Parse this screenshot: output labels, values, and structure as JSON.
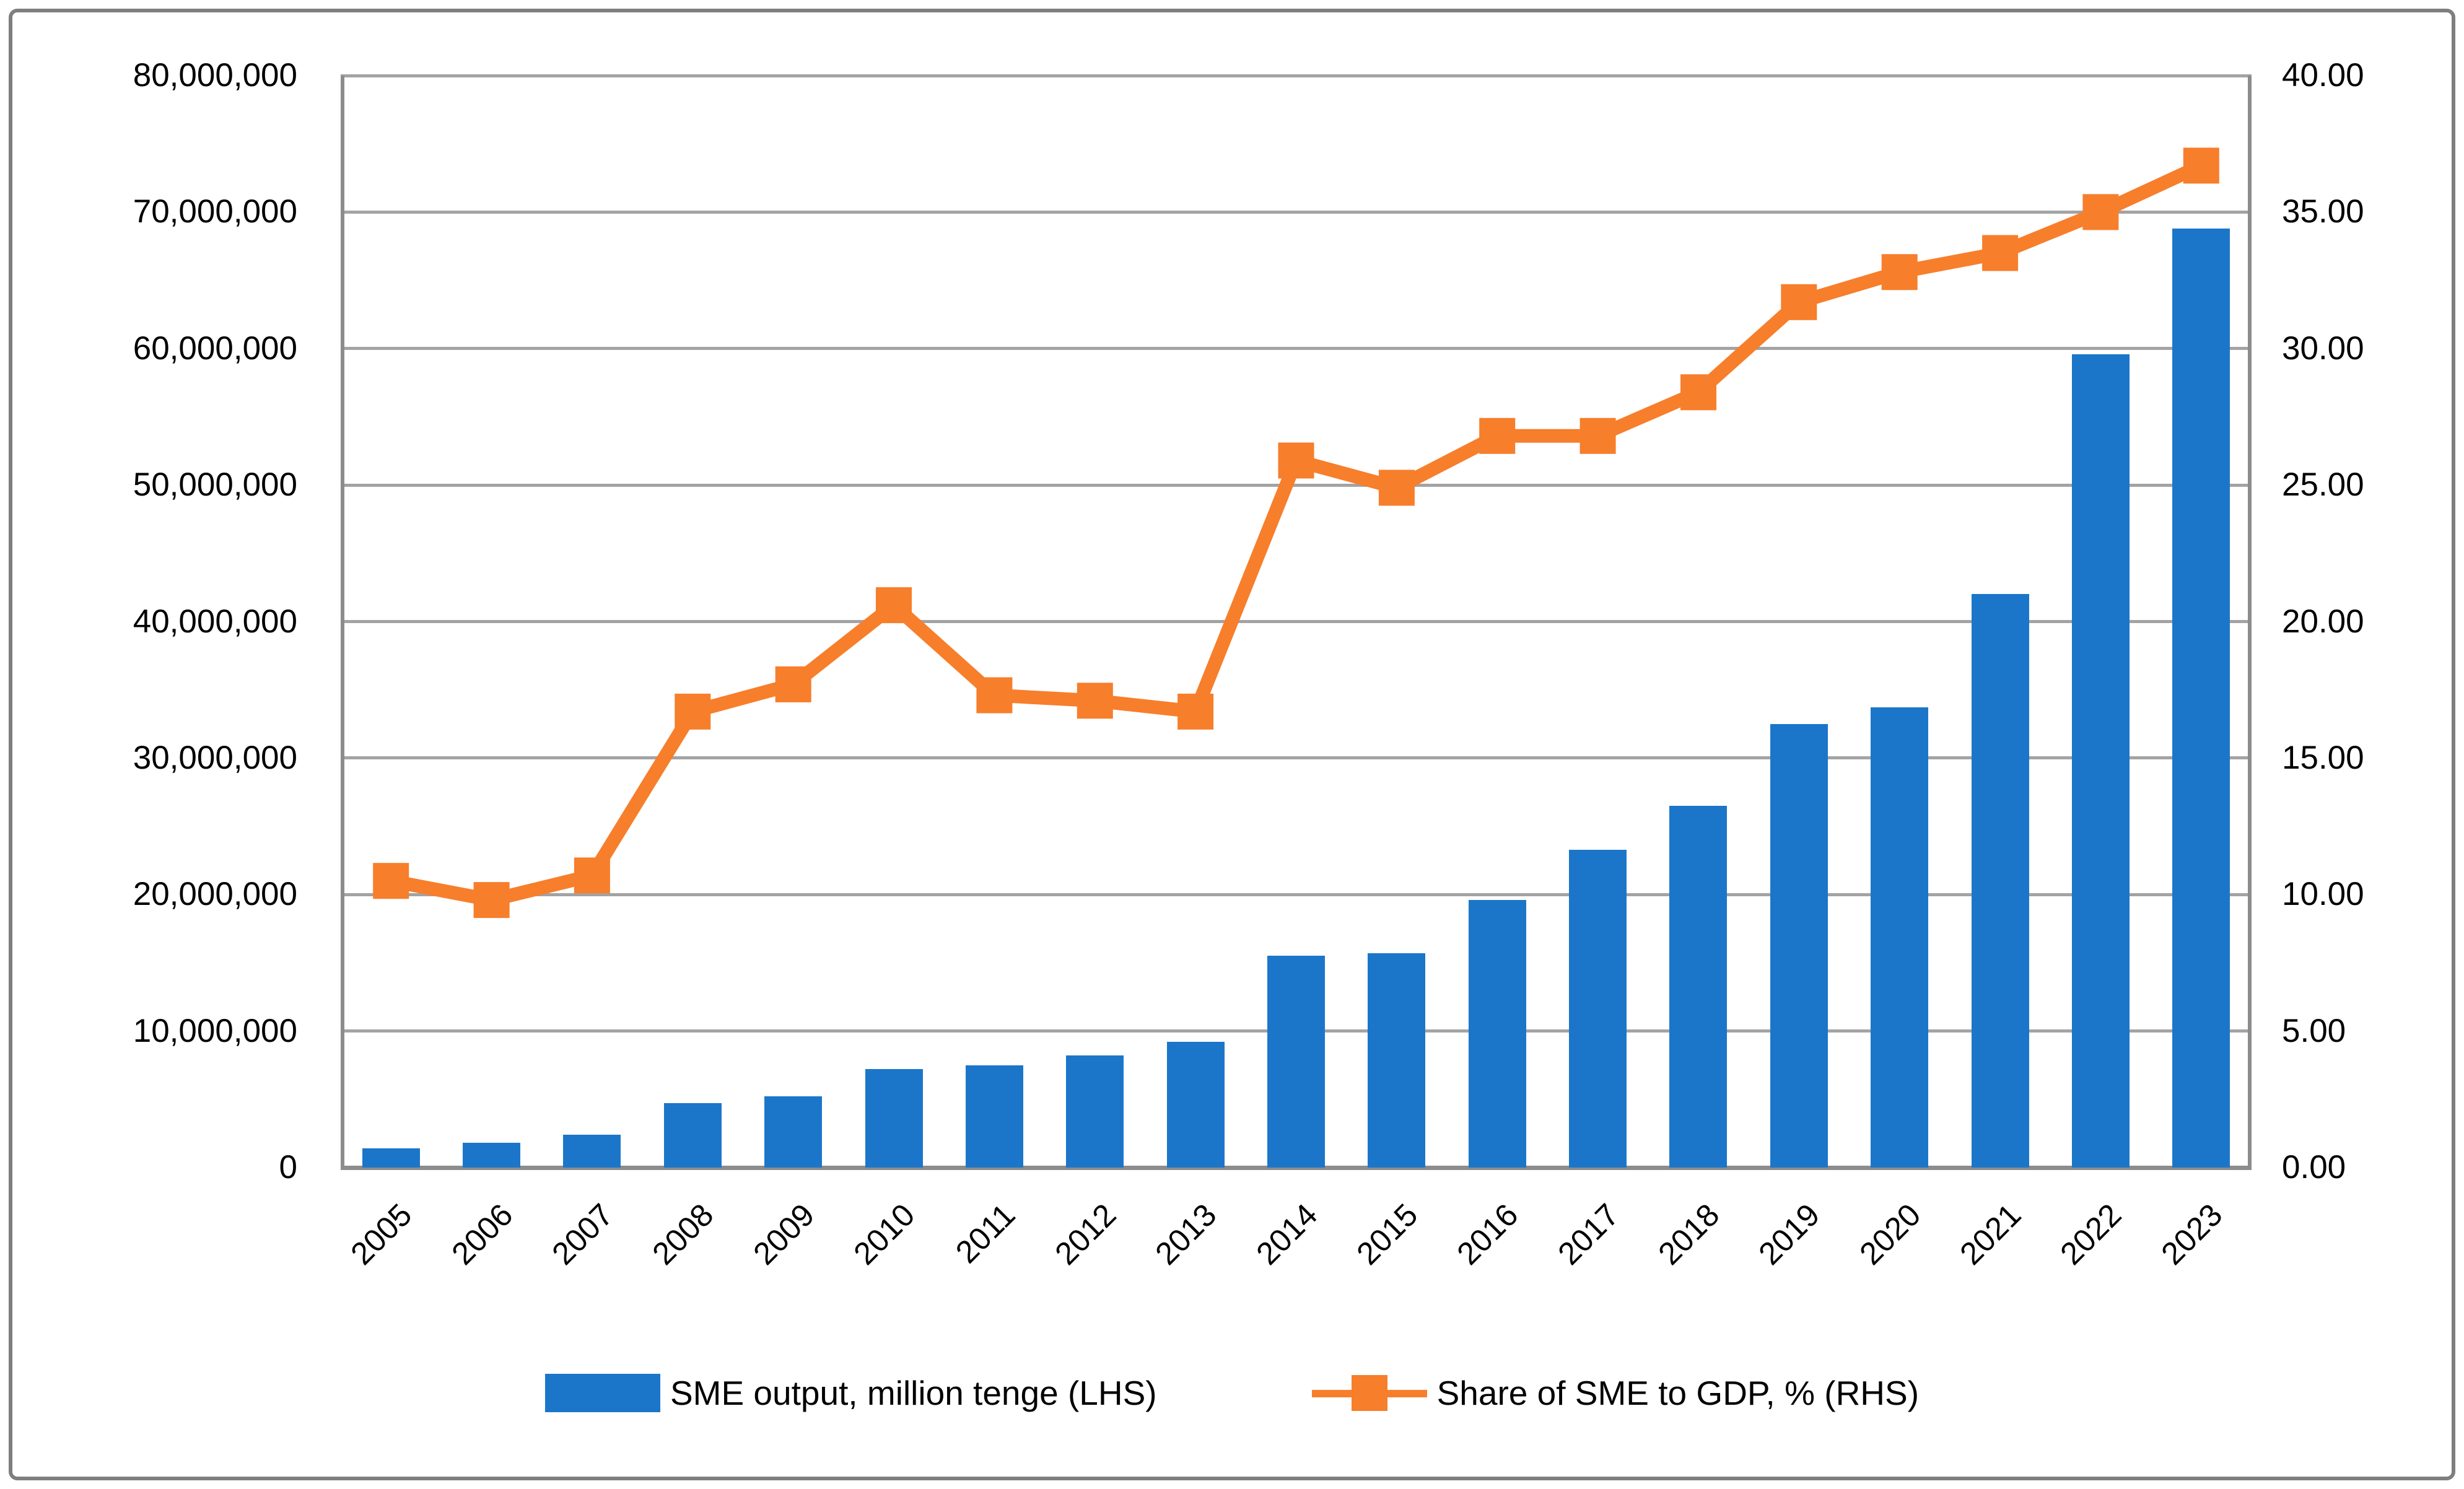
{
  "chart_data": {
    "type": "combo-bar-line",
    "title": "",
    "categories": [
      "2005",
      "2006",
      "2007",
      "2008",
      "2009",
      "2010",
      "2011",
      "2012",
      "2013",
      "2014",
      "2015",
      "2016",
      "2017",
      "2018",
      "2019",
      "2020",
      "2021",
      "2022",
      "2023"
    ],
    "series": [
      {
        "name": "SME output, million tenge (LHS)",
        "type": "bar",
        "axis": "left",
        "values": [
          1400000,
          1800000,
          2400000,
          4700000,
          5200000,
          7200000,
          7500000,
          8200000,
          9200000,
          15500000,
          15700000,
          19600000,
          23300000,
          26500000,
          32500000,
          33700000,
          42000000,
          59600000,
          68800000
        ]
      },
      {
        "name": "Share of SME to GDP, % (RHS)",
        "type": "line",
        "axis": "right",
        "marker": "square",
        "values": [
          10.5,
          9.8,
          10.7,
          16.7,
          17.7,
          20.6,
          17.3,
          17.1,
          16.7,
          25.9,
          24.9,
          26.8,
          26.8,
          28.4,
          31.7,
          32.8,
          33.5,
          35.0,
          36.7
        ]
      }
    ],
    "left_axis": {
      "min": 0,
      "max": 80000000,
      "step": 10000000,
      "tick_labels": [
        "0",
        "10,000,000",
        "20,000,000",
        "30,000,000",
        "40,000,000",
        "50,000,000",
        "60,000,000",
        "70,000,000",
        "80,000,000"
      ]
    },
    "right_axis": {
      "min": 0,
      "max": 40,
      "step": 5,
      "tick_labels": [
        "0.00",
        "5.00",
        "10.00",
        "15.00",
        "20.00",
        "25.00",
        "30.00",
        "35.00",
        "40.00"
      ]
    },
    "grid": true,
    "legend_position": "bottom"
  },
  "colors": {
    "bar_blue": "#1b76c9",
    "line_orange": "#f77e2b",
    "gridline": "#a3a3a3",
    "axis_line": "#8c8c8c",
    "frame_border": "#7f7f7f",
    "text": "#000000"
  }
}
